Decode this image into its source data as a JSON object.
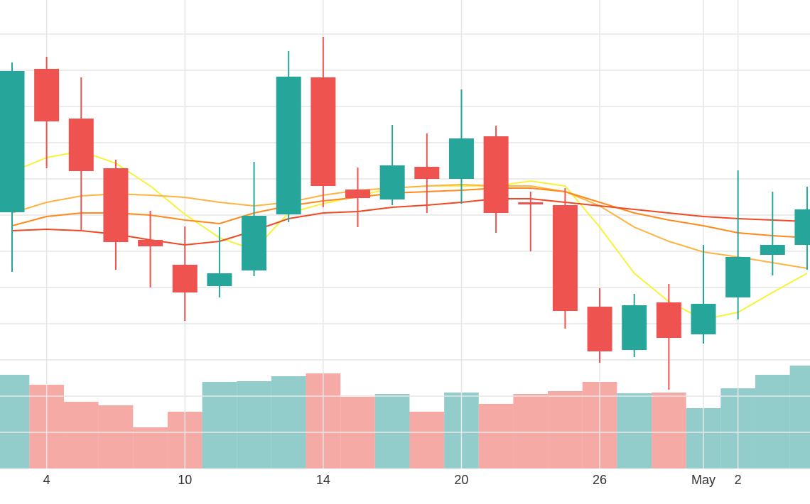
{
  "chart_data": {
    "type": "candlestick",
    "categories": [
      null,
      "4",
      null,
      null,
      null,
      "10",
      null,
      null,
      null,
      "14",
      null,
      null,
      null,
      "20",
      null,
      null,
      null,
      "26",
      null,
      null,
      "May",
      "2",
      null,
      null
    ],
    "open": [
      361,
      563,
      493,
      423,
      322,
      287,
      257,
      279,
      358,
      551,
      393,
      379,
      425,
      408,
      468,
      375,
      371,
      228,
      167,
      234,
      189,
      241,
      301,
      315
    ],
    "high": [
      572,
      580,
      551,
      435,
      363,
      341,
      340,
      432,
      588,
      608,
      424,
      484,
      472,
      534,
      483,
      390,
      395,
      254,
      246,
      260,
      315,
      420,
      390,
      397
    ],
    "low": [
      277,
      423,
      334,
      280,
      255,
      208,
      241,
      271,
      347,
      368,
      340,
      371,
      360,
      373,
      332,
      306,
      197,
      149,
      157,
      111,
      176,
      210,
      272,
      280
    ],
    "close": [
      560,
      489,
      419,
      319,
      313,
      248,
      275,
      356,
      552,
      398,
      381,
      427,
      408,
      465,
      360,
      372,
      222,
      165,
      230,
      184,
      232,
      298,
      315,
      365
    ],
    "volume": [
      132,
      118,
      94,
      89,
      58,
      80,
      122,
      123,
      130,
      134,
      101,
      105,
      80,
      107,
      91,
      105,
      109,
      122,
      106,
      107,
      85,
      113,
      132,
      145
    ],
    "up_color": "#26a69a",
    "down_color": "#ef5350",
    "volume_up_color": "#92cdcc",
    "volume_down_color": "#f5aaa6",
    "series": [
      {
        "color": "#f7f23a",
        "values": [
          418,
          438,
          447,
          430,
          398,
          358,
          325,
          308,
          360,
          373,
          384,
          395,
          398,
          398,
          398,
          405,
          398,
          340,
          275,
          235,
          210,
          220,
          248,
          275
        ]
      },
      {
        "color": "#ffb340",
        "values": [
          360,
          375,
          384,
          387,
          385,
          382,
          375,
          370,
          375,
          385,
          392,
          395,
          398,
          400,
          398,
          398,
          390,
          370,
          340,
          320,
          305,
          298,
          290,
          282
        ]
      },
      {
        "color": "#ff8a1c",
        "values": [
          342,
          355,
          360,
          360,
          357,
          350,
          345,
          360,
          370,
          377,
          382,
          388,
          390,
          392,
          395,
          395,
          390,
          375,
          360,
          350,
          342,
          332,
          328,
          325
        ]
      },
      {
        "color": "#ee4a24",
        "values": [
          335,
          337,
          335,
          330,
          322,
          315,
          320,
          335,
          352,
          360,
          362,
          368,
          371,
          375,
          380,
          380,
          375,
          370,
          365,
          360,
          355,
          352,
          350,
          348
        ]
      }
    ],
    "ylim": [
      0,
      660
    ],
    "y_gridlines": [
      51,
      102,
      153,
      204,
      255,
      306,
      357,
      408,
      459,
      510,
      561,
      612
    ],
    "grid": true
  }
}
